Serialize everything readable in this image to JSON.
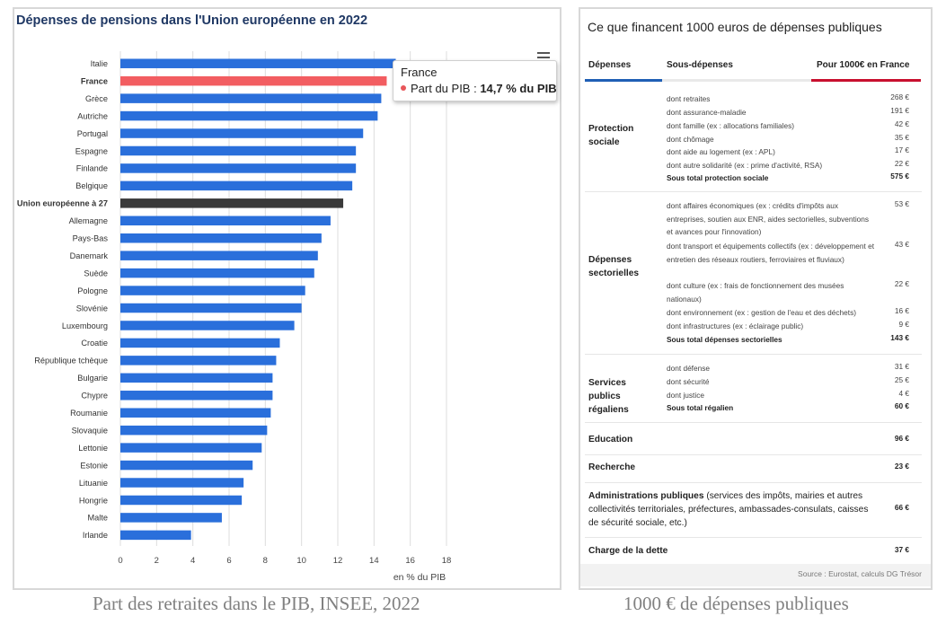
{
  "chart_data": {
    "type": "bar",
    "orientation": "horizontal",
    "title": "Dépenses de pensions dans l'Union européenne en 2022",
    "xlabel": "en % du PIB",
    "xlim": [
      0,
      18
    ],
    "xticks": [
      "0",
      "2",
      "4",
      "6",
      "8",
      "10",
      "12",
      "14",
      "16",
      "18"
    ],
    "grid": true,
    "categories": [
      "Italie",
      "France",
      "Grèce",
      "Autriche",
      "Portugal",
      "Espagne",
      "Finlande",
      "Belgique",
      "Union européenne à 27",
      "Allemagne",
      "Pays-Bas",
      "Danemark",
      "Suède",
      "Pologne",
      "Slovénie",
      "Luxembourg",
      "Croatie",
      "République tchèque",
      "Bulgarie",
      "Chypre",
      "Roumanie",
      "Slovaquie",
      "Lettonie",
      "Estonie",
      "Lituanie",
      "Hongrie",
      "Malte",
      "Irlande"
    ],
    "values": [
      15.2,
      14.7,
      14.4,
      14.2,
      13.4,
      13.0,
      13.0,
      12.8,
      12.3,
      11.6,
      11.1,
      10.9,
      10.7,
      10.2,
      10.0,
      9.6,
      8.8,
      8.6,
      8.4,
      8.4,
      8.3,
      8.1,
      7.8,
      7.3,
      6.8,
      6.7,
      5.6,
      3.9
    ],
    "bold_categories": [
      "France",
      "Union européenne à 27"
    ],
    "colors": {
      "default": "#2a6fdb",
      "highlight": "#f25d61",
      "eu": "#3a3a3a"
    },
    "tooltip": {
      "title": "France",
      "label": "Part du PIB : ",
      "value": "14,7 % du PIB"
    }
  },
  "captions": {
    "left": "Part des retraites dans le PIB, INSEE, 2022",
    "right": "1000 € de dépenses publiques"
  },
  "table": {
    "title": "Ce que financent 1000 euros de dépenses publiques",
    "headers": {
      "depenses": "Dépenses",
      "sous_depenses": "Sous-dépenses",
      "pour_1000": "Pour 1000€ en France"
    },
    "sections": [
      {
        "name": "Protection sociale",
        "rows": [
          {
            "label": "dont retraites",
            "value": "268 €"
          },
          {
            "label": "dont assurance-maladie",
            "value": "191 €"
          },
          {
            "label": "dont famille (ex : allocations familiales)",
            "value": "42 €"
          },
          {
            "label": "dont chômage",
            "value": "35 €"
          },
          {
            "label": "dont aide au logement (ex : APL)",
            "value": "17 €"
          },
          {
            "label": "dont autre solidarité (ex : prime d'activité, RSA)",
            "value": "22 €"
          },
          {
            "label": "Sous total protection sociale",
            "value": "575 €"
          }
        ]
      },
      {
        "name": "Dépenses sectorielles",
        "rows": [
          {
            "label": "dont affaires économiques (ex : crédits d'impôts aux entreprises, soutien aux ENR, aides sectorielles, subventions et avances pour l'innovation)",
            "value": "53 €"
          },
          {
            "label": "dont transport et équipements collectifs (ex : développement et entretien des réseaux routiers, ferroviaires et fluviaux)",
            "value": "43 €"
          },
          {
            "label": "dont culture (ex : frais de fonctionnement des musées nationaux)",
            "value": "22 €"
          },
          {
            "label": "dont environnement (ex : gestion de l'eau et des déchets)",
            "value": "16 €"
          },
          {
            "label": "dont infrastructures (ex : éclairage public)",
            "value": "9 €"
          },
          {
            "label": "Sous total dépenses sectorielles",
            "value": "143 €"
          }
        ]
      },
      {
        "name": "Services publics régaliens",
        "rows": [
          {
            "label": "dont défense",
            "value": "31 €"
          },
          {
            "label": "dont sécurité",
            "value": "25 €"
          },
          {
            "label": "dont justice",
            "value": "4 €"
          },
          {
            "label": "Sous total régalien",
            "value": "60 €"
          }
        ]
      },
      {
        "name": "Education",
        "value": "96 €"
      },
      {
        "name": "Recherche",
        "value": "23 €"
      },
      {
        "name": "Administrations publiques",
        "note": " (services des impôts, mairies et autres collectivités territoriales, préfectures, ambassades-consulats, caisses de sécurité sociale, etc.)",
        "value": "66 €"
      },
      {
        "name": "Charge de la dette",
        "value": "37 €"
      }
    ],
    "source": "Source : Eurostat, calculs DG Trésor"
  }
}
